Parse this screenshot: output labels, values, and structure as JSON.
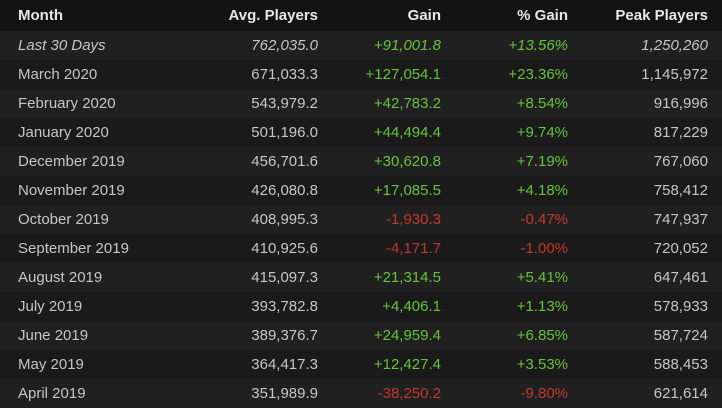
{
  "table": {
    "header": [
      "Month",
      "Avg. Players",
      "Gain",
      "% Gain",
      "Peak Players"
    ],
    "rows": [
      [
        "Last 30 Days",
        "762,035.0",
        "+91,001.8",
        "+13.56%",
        "1,250,260"
      ],
      [
        "March 2020",
        "671,033.3",
        "+127,054.1",
        "+23.36%",
        "1,145,972"
      ],
      [
        "February 2020",
        "543,979.2",
        "+42,783.2",
        "+8.54%",
        "916,996"
      ],
      [
        "January 2020",
        "501,196.0",
        "+44,494.4",
        "+9.74%",
        "817,229"
      ],
      [
        "December 2019",
        "456,701.6",
        "+30,620.8",
        "+7.19%",
        "767,060"
      ],
      [
        "November 2019",
        "426,080.8",
        "+17,085.5",
        "+4.18%",
        "758,412"
      ],
      [
        "October 2019",
        "408,995.3",
        "-1,930.3",
        "-0.47%",
        "747,937"
      ],
      [
        "September 2019",
        "410,925.6",
        "-4,171.7",
        "-1.00%",
        "720,052"
      ],
      [
        "August 2019",
        "415,097.3",
        "+21,314.5",
        "+5.41%",
        "647,461"
      ],
      [
        "July 2019",
        "393,782.8",
        "+4,406.1",
        "+1.13%",
        "578,933"
      ],
      [
        "June 2019",
        "389,376.7",
        "+24,959.4",
        "+6.85%",
        "587,724"
      ],
      [
        "May 2019",
        "364,417.3",
        "+12,427.4",
        "+3.53%",
        "588,453"
      ],
      [
        "April 2019",
        "351,989.9",
        "-38,250.2",
        "-9.80%",
        "621,614"
      ]
    ]
  }
}
